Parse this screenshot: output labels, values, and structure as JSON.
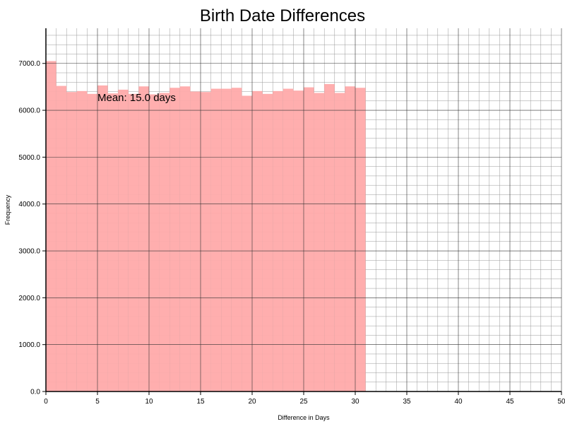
{
  "chart_data": {
    "type": "bar",
    "title": "Birth Date Differences",
    "xlabel": "Difference in Days",
    "ylabel": "Frequency",
    "xlim": [
      0,
      50
    ],
    "ylim": [
      0,
      7750
    ],
    "xticks": [
      0,
      5,
      10,
      15,
      20,
      25,
      30,
      35,
      40,
      45,
      50
    ],
    "xtick_labels": [
      "0",
      "5",
      "10",
      "15",
      "20",
      "25",
      "30",
      "35",
      "40",
      "45",
      "50"
    ],
    "yticks": [
      0,
      1000,
      2000,
      3000,
      4000,
      5000,
      6000,
      7000
    ],
    "ytick_labels": [
      "0.0",
      "1000.0",
      "2000.0",
      "3000.0",
      "4000.0",
      "5000.0",
      "6000.0",
      "7000.0"
    ],
    "grid": true,
    "bin_width": 1,
    "bin_starts": [
      0,
      1,
      2,
      3,
      4,
      5,
      6,
      7,
      8,
      9,
      10,
      11,
      12,
      13,
      14,
      15,
      16,
      17,
      18,
      19,
      20,
      21,
      22,
      23,
      24,
      25,
      26,
      27,
      28,
      29,
      30
    ],
    "values": [
      7050,
      6520,
      6390,
      6410,
      6350,
      6530,
      6360,
      6440,
      6350,
      6510,
      6340,
      6370,
      6480,
      6510,
      6400,
      6390,
      6460,
      6460,
      6480,
      6310,
      6410,
      6350,
      6410,
      6460,
      6420,
      6490,
      6370,
      6560,
      6370,
      6510,
      6480
    ],
    "bar_color": "#ffaaaa",
    "annotation": {
      "text": "Mean: 15.0 days",
      "x": 5,
      "y": 6200
    }
  }
}
